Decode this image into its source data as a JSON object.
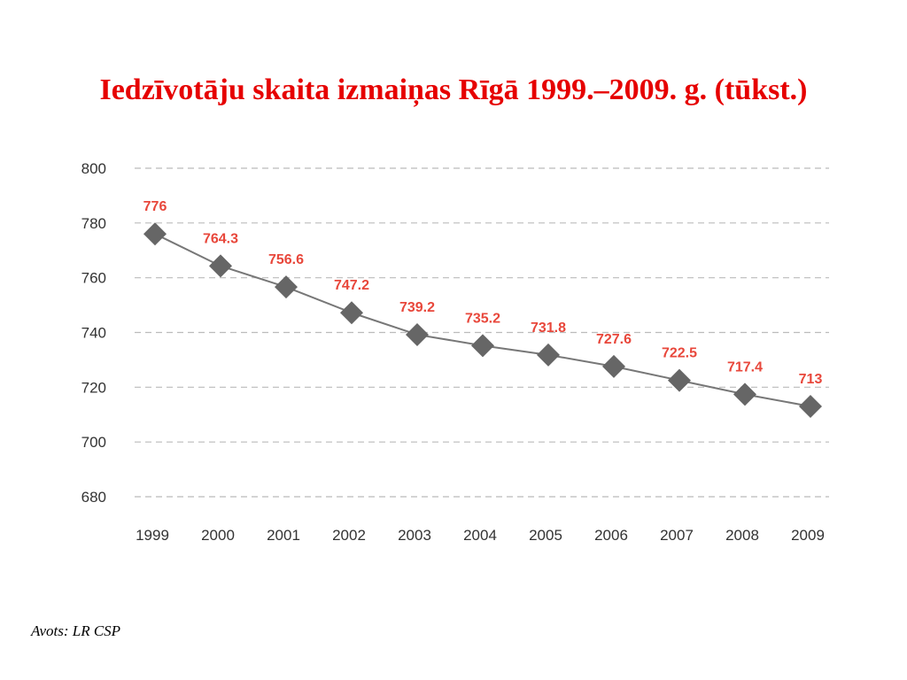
{
  "colors": {
    "title": "#e60000",
    "data_label": "#e8473b",
    "series_line": "#777777",
    "marker": "#666666",
    "grid": "#bbbbbb",
    "tick_text": "#333333"
  },
  "chart_data": {
    "type": "line",
    "title": "Iedzīvotāju skaita izmaiņas Rīgā 1999.–2009. g. (tūkst.)",
    "x": [
      "1999",
      "2000",
      "2001",
      "2002",
      "2003",
      "2004",
      "2005",
      "2006",
      "2007",
      "2008",
      "2009"
    ],
    "series": [
      {
        "values": [
          776,
          764.3,
          756.6,
          747.2,
          739.2,
          735.2,
          731.8,
          727.6,
          722.5,
          717.4,
          713
        ],
        "marker": "diamond"
      }
    ],
    "ylim": [
      680,
      800
    ],
    "yticks": [
      800,
      780,
      760,
      740,
      720,
      700,
      680
    ],
    "grid": true,
    "data_labels": true
  },
  "footer": {
    "source": "Avots: LR CSP"
  }
}
